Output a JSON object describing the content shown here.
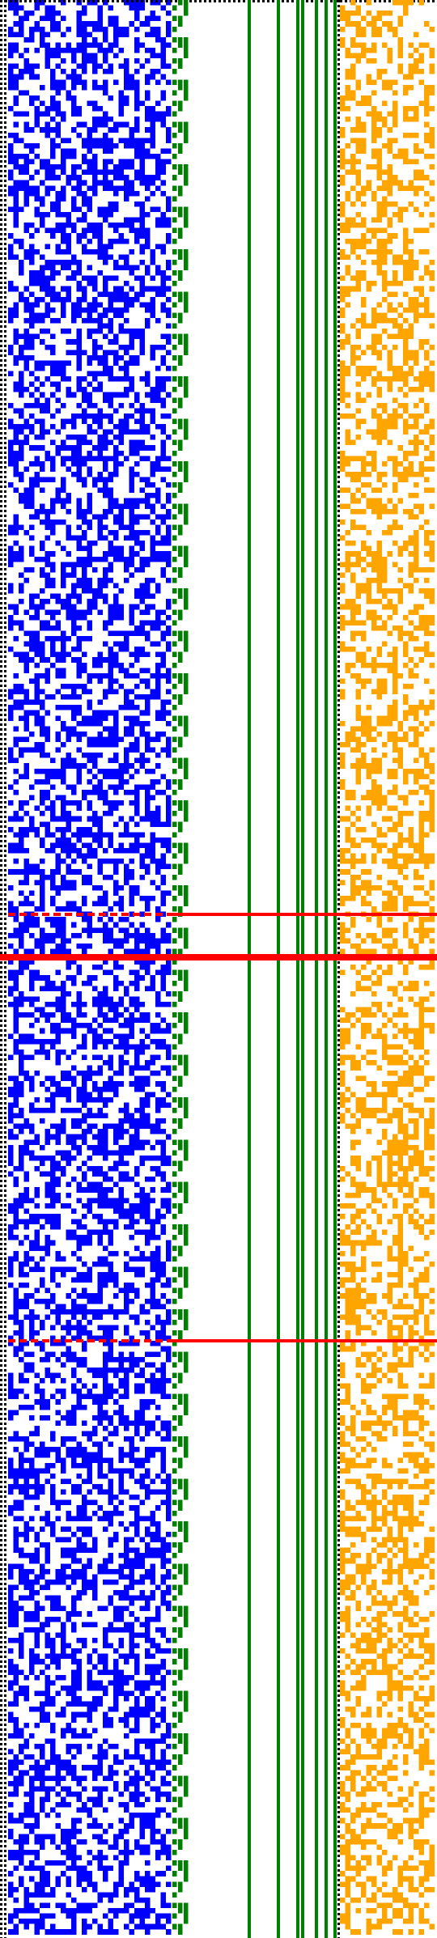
{
  "figure": {
    "type": "bit-pattern-visualization",
    "background": "#ffffff",
    "colors": {
      "left_block": "#0000ff",
      "staircase": "#008000",
      "right_block": "#ffa500",
      "divider_dots": "#000000",
      "highlight_rows": "#ff0000"
    },
    "regions": {
      "left_block": {
        "columns": 33,
        "density": 0.5
      },
      "staircase": {
        "pattern": "binary-counter"
      },
      "right_block": {
        "columns": 17,
        "density": 0.45
      }
    },
    "vertical_lines": {
      "count": 7
    },
    "highlight_rows": [
      {
        "label": "",
        "style": "dashed-left",
        "value": 0.472
      },
      {
        "label": "",
        "style": "solid",
        "value": 0.494
      },
      {
        "label": "",
        "style": "dashed-left",
        "value": 0.692
      }
    ]
  }
}
